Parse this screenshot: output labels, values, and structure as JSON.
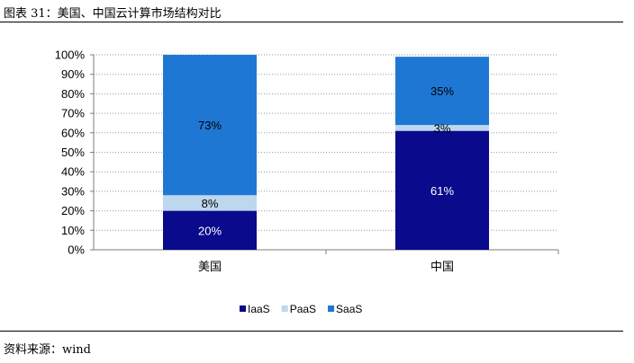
{
  "figure": {
    "title": "图表 31：美国、中国云计算市场结构对比",
    "source": "资料来源：wind"
  },
  "chart_data": {
    "type": "bar",
    "stacked": true,
    "categories": [
      "美国",
      "中国"
    ],
    "series": [
      {
        "name": "IaaS",
        "values": [
          20,
          61
        ],
        "labels": [
          "20%",
          "61%"
        ],
        "color": "#0a0a8c",
        "label_color": "#ffffff"
      },
      {
        "name": "PaaS",
        "values": [
          8,
          3
        ],
        "labels": [
          "8%",
          "3%"
        ],
        "color": "#bdd7ee",
        "label_color": "#000000"
      },
      {
        "name": "SaaS",
        "values": [
          73,
          35
        ],
        "labels": [
          "73%",
          "35%"
        ],
        "color": "#1f77d4",
        "label_color": "#000000"
      }
    ],
    "ylim": [
      0,
      100
    ],
    "yticks": [
      0,
      10,
      20,
      30,
      40,
      50,
      60,
      70,
      80,
      90,
      100
    ],
    "ytick_labels": [
      "0%",
      "10%",
      "20%",
      "30%",
      "40%",
      "50%",
      "60%",
      "70%",
      "80%",
      "90%",
      "100%"
    ],
    "grid": true,
    "legend_position": "bottom",
    "legend_labels": [
      "IaaS",
      "PaaS",
      "SaaS"
    ]
  }
}
